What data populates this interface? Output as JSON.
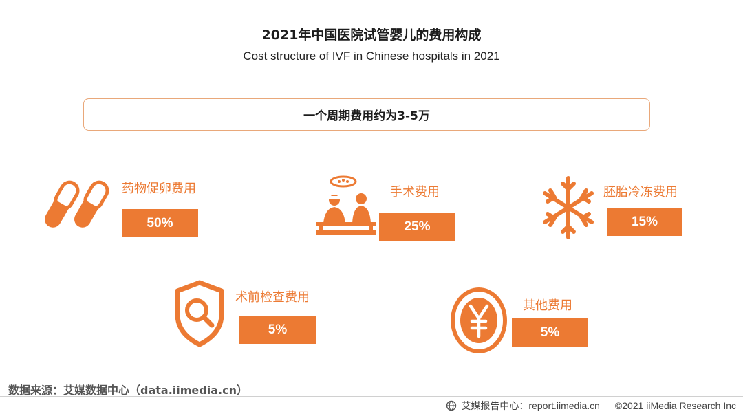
{
  "title": "2021年中国医院试管婴儿的费用构成",
  "subtitle": "Cost structure of IVF in Chinese hospitals in 2021",
  "summary": "一个周期费用约为3-5万",
  "chart_data": {
    "type": "table",
    "title": "2021年中国医院试管婴儿的费用构成",
    "subtitle": "Cost structure of IVF in Chinese hospitals in 2021",
    "note": "一个周期费用约为3-5万",
    "categories": [
      "药物促卵费用",
      "手术费用",
      "胚胎冷冻费用",
      "术前检查费用",
      "其他费用"
    ],
    "values": [
      50,
      25,
      15,
      5,
      5
    ],
    "value_labels": [
      "50%",
      "25%",
      "15%",
      "5%",
      "5%"
    ],
    "unit": "%"
  },
  "items": [
    {
      "label": "药物促卵费用",
      "value": "50%",
      "icon": "pill-capsule-icon"
    },
    {
      "label": "手术费用",
      "value": "25%",
      "icon": "surgery-icon"
    },
    {
      "label": "胚胎冷冻费用",
      "value": "15%",
      "icon": "snowflake-icon"
    },
    {
      "label": "术前检查费用",
      "value": "5%",
      "icon": "shield-search-icon"
    },
    {
      "label": "其他费用",
      "value": "5%",
      "icon": "yuan-coin-icon"
    }
  ],
  "colors": {
    "accent": "#ec7a33",
    "box_border": "#e9a87a"
  },
  "source": "数据来源：艾媒数据中心（data.iimedia.cn）",
  "footer": {
    "report": "艾媒报告中心：report.iimedia.cn",
    "copyright": "©2021  iiMedia Research  Inc"
  }
}
